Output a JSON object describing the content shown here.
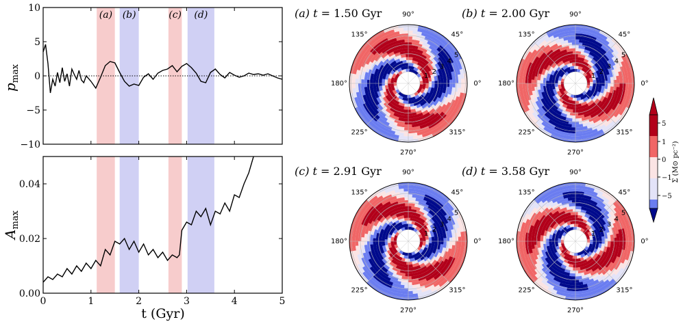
{
  "chart_data": [
    {
      "type": "line",
      "panel": "top-left",
      "ylabel_var": "p",
      "ylabel_sub": "max",
      "xlim": [
        0,
        5
      ],
      "ylim": [
        -10,
        10
      ],
      "yticks": [
        -10,
        -5,
        0,
        5,
        10
      ],
      "ytick_labels": [
        "−10",
        "−5",
        "0",
        "5",
        "10"
      ],
      "xticks": [
        0,
        1,
        2,
        3,
        4,
        5
      ],
      "zero_line": "dotted",
      "bands": [
        {
          "label": "(a)",
          "start": 1.12,
          "end": 1.5,
          "color": "#f7cccc"
        },
        {
          "label": "(b)",
          "start": 1.6,
          "end": 2.0,
          "color": "#d0d0f4"
        },
        {
          "label": "(c)",
          "start": 2.62,
          "end": 2.9,
          "color": "#f7cccc"
        },
        {
          "label": "(d)",
          "start": 3.02,
          "end": 3.58,
          "color": "#d0d0f4"
        }
      ],
      "x": [
        0.0,
        0.05,
        0.1,
        0.15,
        0.2,
        0.25,
        0.3,
        0.35,
        0.4,
        0.45,
        0.5,
        0.55,
        0.6,
        0.65,
        0.7,
        0.75,
        0.8,
        0.85,
        0.9,
        1.0,
        1.1,
        1.2,
        1.3,
        1.4,
        1.5,
        1.6,
        1.7,
        1.8,
        1.9,
        2.0,
        2.1,
        2.2,
        2.3,
        2.4,
        2.5,
        2.6,
        2.7,
        2.8,
        2.9,
        3.0,
        3.1,
        3.2,
        3.3,
        3.4,
        3.5,
        3.6,
        3.7,
        3.8,
        3.9,
        4.0,
        4.1,
        4.2,
        4.3,
        4.4,
        4.5,
        4.6,
        4.7,
        4.8,
        4.9,
        5.0
      ],
      "values": [
        3.5,
        4.6,
        1.8,
        -2.5,
        -0.5,
        -1.5,
        0.5,
        -1.0,
        1.2,
        -0.8,
        0.3,
        -1.5,
        1.0,
        0.2,
        -0.5,
        0.8,
        -0.6,
        -1.0,
        0.0,
        -0.8,
        -1.8,
        -0.2,
        1.5,
        2.1,
        1.9,
        0.5,
        -0.8,
        -1.5,
        -1.2,
        -1.4,
        -0.2,
        0.3,
        -0.5,
        0.4,
        0.8,
        1.0,
        1.5,
        0.6,
        1.4,
        1.8,
        1.2,
        0.4,
        -0.8,
        -1.0,
        0.5,
        1.0,
        0.2,
        -0.3,
        0.5,
        0.1,
        -0.2,
        0.0,
        0.4,
        0.2,
        0.3,
        0.1,
        0.3,
        0.0,
        -0.3,
        -0.5
      ]
    },
    {
      "type": "line",
      "panel": "bottom-left",
      "ylabel_var": "A",
      "ylabel_sub": "max",
      "xlabel": "t (Gyr)",
      "xlim": [
        0,
        5
      ],
      "ylim": [
        0,
        0.05
      ],
      "yticks": [
        0.0,
        0.02,
        0.04
      ],
      "ytick_labels": [
        "0.00",
        "0.02",
        "0.04"
      ],
      "xticks": [
        0,
        1,
        2,
        3,
        4,
        5
      ],
      "xtick_labels": [
        "0",
        "1",
        "2",
        "3",
        "4",
        "5"
      ],
      "x": [
        0.0,
        0.1,
        0.2,
        0.3,
        0.4,
        0.5,
        0.6,
        0.7,
        0.8,
        0.9,
        1.0,
        1.1,
        1.2,
        1.3,
        1.4,
        1.5,
        1.6,
        1.7,
        1.8,
        1.9,
        2.0,
        2.1,
        2.2,
        2.3,
        2.4,
        2.5,
        2.6,
        2.7,
        2.8,
        2.85,
        2.9,
        3.0,
        3.1,
        3.2,
        3.3,
        3.4,
        3.5,
        3.6,
        3.7,
        3.8,
        3.9,
        4.0,
        4.1,
        4.2,
        4.3,
        4.4
      ],
      "values": [
        0.004,
        0.006,
        0.005,
        0.007,
        0.006,
        0.009,
        0.007,
        0.01,
        0.008,
        0.011,
        0.009,
        0.012,
        0.01,
        0.016,
        0.014,
        0.019,
        0.018,
        0.02,
        0.016,
        0.019,
        0.015,
        0.018,
        0.014,
        0.016,
        0.013,
        0.015,
        0.012,
        0.014,
        0.013,
        0.014,
        0.023,
        0.026,
        0.025,
        0.03,
        0.028,
        0.031,
        0.025,
        0.03,
        0.029,
        0.033,
        0.03,
        0.036,
        0.035,
        0.04,
        0.044,
        0.05
      ]
    },
    {
      "type": "heatmap",
      "subtype": "polar",
      "label": "(a) t = 1.50 Gyr",
      "tag": "(a)",
      "time": "1.50",
      "unit": "Gyr",
      "arm_offset_deg": 0,
      "angle_labels": [
        "0°",
        "45°",
        "90°",
        "135°",
        "180°",
        "225°",
        "270°",
        "315°"
      ],
      "radial_labels": [
        "1",
        "2",
        "3",
        "4",
        "5"
      ]
    },
    {
      "type": "heatmap",
      "subtype": "polar",
      "label": "(b) t = 2.00 Gyr",
      "tag": "(b)",
      "time": "2.00",
      "unit": "Gyr",
      "arm_offset_deg": 40,
      "angle_labels": [
        "0°",
        "45°",
        "90°",
        "135°",
        "180°",
        "225°",
        "270°",
        "315°"
      ],
      "radial_labels": [
        "1",
        "2",
        "3",
        "4",
        "5"
      ]
    },
    {
      "type": "heatmap",
      "subtype": "polar",
      "label": "(c) t = 2.91 Gyr",
      "tag": "(c)",
      "time": "2.91",
      "unit": "Gyr",
      "arm_offset_deg": 20,
      "angle_labels": [
        "0°",
        "45°",
        "90°",
        "135°",
        "180°",
        "225°",
        "270°",
        "315°"
      ],
      "radial_labels": [
        "1",
        "2",
        "3",
        "4",
        "5"
      ]
    },
    {
      "type": "heatmap",
      "subtype": "polar",
      "label": "(d) t = 3.58 Gyr",
      "tag": "(d)",
      "time": "3.58",
      "unit": "Gyr",
      "arm_offset_deg": 55,
      "angle_labels": [
        "0°",
        "45°",
        "90°",
        "135°",
        "180°",
        "225°",
        "270°",
        "315°"
      ],
      "radial_labels": [
        "1",
        "2",
        "3",
        "4",
        "5"
      ]
    }
  ],
  "colorbar": {
    "label": "Σ (M⊙ pc⁻²)",
    "levels": [
      {
        "label": "5",
        "color": "#b2001a"
      },
      {
        "label": "1",
        "color": "#f06666"
      },
      {
        "label": "0",
        "color": "#fbe4e4"
      },
      {
        "label": "−1",
        "color": "#e3e3f8"
      },
      {
        "label": "−5",
        "color": "#6b7df0"
      }
    ],
    "top_color": "#b2001a",
    "bottom_color": "#000a8c"
  }
}
